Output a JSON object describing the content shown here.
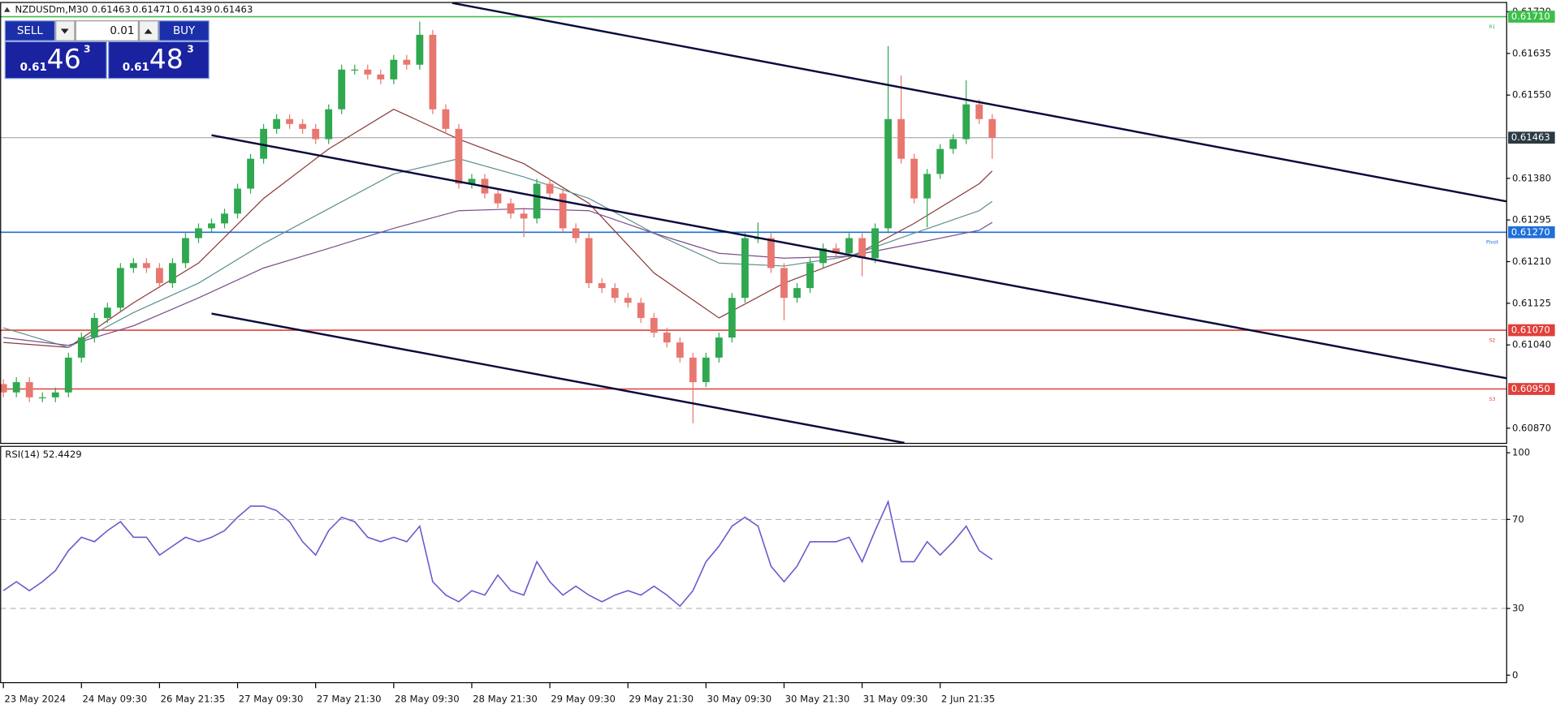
{
  "header": {
    "symbol": "NZDUSDm,M30",
    "ohlc": [
      "0.61463",
      "0.61471",
      "0.61439",
      "0.61463"
    ]
  },
  "trade_panel": {
    "sell_label": "SELL",
    "buy_label": "BUY",
    "lot": "0.01",
    "sell_price": {
      "prefix": "0.61",
      "big": "46",
      "sup": "3"
    },
    "buy_price": {
      "prefix": "0.61",
      "big": "48",
      "sup": "3"
    }
  },
  "chart_data": [
    {
      "type": "candlestick",
      "up_color": "#2fa84f",
      "down_color": "#e8776f",
      "x": [
        0,
        4,
        8,
        12,
        16,
        20,
        24,
        28,
        32,
        36,
        40,
        44,
        48,
        52,
        56,
        60,
        64,
        68,
        72,
        76,
        80,
        84,
        88,
        92,
        96,
        100,
        104,
        108,
        112,
        116,
        120,
        124,
        128,
        132,
        136,
        140,
        144,
        148,
        152,
        156,
        160,
        164,
        168,
        172,
        176,
        180,
        184,
        188,
        192,
        196,
        200,
        204,
        208,
        212,
        216,
        220,
        224,
        228,
        232,
        236,
        240,
        244,
        248,
        252,
        256,
        260,
        264,
        268,
        272,
        276,
        280,
        284,
        288,
        292,
        296,
        300,
        304
      ],
      "open": [
        0.6096,
        0.60943,
        0.60964,
        0.60933,
        0.60933,
        0.60943,
        0.61014,
        0.61055,
        0.61095,
        0.61116,
        0.61197,
        0.61207,
        0.61197,
        0.61166,
        0.61207,
        0.61258,
        0.61278,
        0.61288,
        0.61308,
        0.61359,
        0.6142,
        0.61481,
        0.61501,
        0.61491,
        0.61481,
        0.6146,
        0.61521,
        0.61602,
        0.61602,
        0.61592,
        0.61582,
        0.61622,
        0.61612,
        0.61673,
        0.61521,
        0.61481,
        0.61369,
        0.61379,
        0.61349,
        0.61329,
        0.61308,
        0.61298,
        0.61369,
        0.61349,
        0.61278,
        0.61258,
        0.61166,
        0.61156,
        0.61136,
        0.61126,
        0.61095,
        0.61065,
        0.61045,
        0.61014,
        0.60964,
        0.61014,
        0.61055,
        0.61136,
        0.61258,
        0.61258,
        0.61197,
        0.61136,
        0.61156,
        0.61207,
        0.61237,
        0.61227,
        0.61258,
        0.61217,
        0.61278,
        0.61501,
        0.6142,
        0.61339,
        0.61389,
        0.6144,
        0.6146,
        0.61531,
        0.61501
      ],
      "high": [
        0.6097,
        0.60974,
        0.60974,
        0.60943,
        0.60953,
        0.61024,
        0.61065,
        0.61105,
        0.61126,
        0.61207,
        0.61217,
        0.61217,
        0.61207,
        0.61217,
        0.61268,
        0.61288,
        0.61298,
        0.61318,
        0.61369,
        0.6143,
        0.61491,
        0.61511,
        0.61511,
        0.61501,
        0.61491,
        0.61531,
        0.61612,
        0.61612,
        0.61612,
        0.61602,
        0.61632,
        0.61632,
        0.617,
        0.61683,
        0.61531,
        0.61491,
        0.61389,
        0.61389,
        0.61359,
        0.61339,
        0.61318,
        0.61379,
        0.61379,
        0.61359,
        0.61288,
        0.61268,
        0.61176,
        0.61166,
        0.61146,
        0.61136,
        0.61105,
        0.61075,
        0.61055,
        0.61024,
        0.61024,
        0.61065,
        0.61146,
        0.61268,
        0.6129,
        0.61268,
        0.61207,
        0.61166,
        0.61217,
        0.61247,
        0.61247,
        0.61268,
        0.61268,
        0.61288,
        0.6165,
        0.6159,
        0.6143,
        0.61399,
        0.6145,
        0.6147,
        0.6158,
        0.61541,
        0.61511
      ],
      "low": [
        0.60933,
        0.60933,
        0.60923,
        0.60923,
        0.60923,
        0.60933,
        0.61004,
        0.61045,
        0.61085,
        0.61106,
        0.61187,
        0.61187,
        0.61156,
        0.61156,
        0.61197,
        0.61248,
        0.61268,
        0.61278,
        0.61298,
        0.61349,
        0.6141,
        0.61471,
        0.61481,
        0.61471,
        0.6145,
        0.6145,
        0.61511,
        0.61592,
        0.61582,
        0.61572,
        0.61572,
        0.61602,
        0.61602,
        0.61511,
        0.61471,
        0.61359,
        0.61359,
        0.61339,
        0.61319,
        0.61298,
        0.6126,
        0.61288,
        0.61339,
        0.61268,
        0.61248,
        0.61156,
        0.61146,
        0.61126,
        0.61116,
        0.61085,
        0.61055,
        0.61035,
        0.61004,
        0.6088,
        0.60954,
        0.61004,
        0.61045,
        0.61126,
        0.61248,
        0.61187,
        0.6109,
        0.61126,
        0.61146,
        0.61197,
        0.61217,
        0.61217,
        0.6118,
        0.61207,
        0.61268,
        0.6141,
        0.61329,
        0.6128,
        0.61379,
        0.6143,
        0.6145,
        0.61491,
        0.6142
      ],
      "close": [
        0.60943,
        0.60964,
        0.60933,
        0.60933,
        0.60943,
        0.61014,
        0.61055,
        0.61095,
        0.61116,
        0.61197,
        0.61207,
        0.61197,
        0.61166,
        0.61207,
        0.61258,
        0.61278,
        0.61288,
        0.61308,
        0.61359,
        0.6142,
        0.61481,
        0.61501,
        0.61491,
        0.61481,
        0.6146,
        0.61521,
        0.61602,
        0.61602,
        0.61592,
        0.61582,
        0.61622,
        0.61612,
        0.61673,
        0.61521,
        0.61481,
        0.61369,
        0.61379,
        0.61349,
        0.61329,
        0.61308,
        0.61298,
        0.61369,
        0.61349,
        0.61278,
        0.61258,
        0.61166,
        0.61156,
        0.61136,
        0.61126,
        0.61095,
        0.61065,
        0.61045,
        0.61014,
        0.60964,
        0.61014,
        0.61055,
        0.61136,
        0.61258,
        0.61258,
        0.61197,
        0.61136,
        0.61156,
        0.61207,
        0.61237,
        0.61227,
        0.61258,
        0.61217,
        0.61278,
        0.61501,
        0.6142,
        0.61339,
        0.61389,
        0.6144,
        0.6146,
        0.61531,
        0.61501,
        0.61463
      ],
      "overlays": [
        {
          "color": "#8b3a3a",
          "x": [
            0,
            20,
            40,
            60,
            80,
            100,
            120,
            140,
            160,
            180,
            200,
            220,
            240,
            260,
            280,
            300,
            304
          ],
          "values": [
            0.61045,
            0.61035,
            0.61126,
            0.61207,
            0.61339,
            0.6144,
            0.61521,
            0.6146,
            0.6141,
            0.61329,
            0.61187,
            0.61095,
            0.61166,
            0.61217,
            0.61288,
            0.61369,
            0.61395
          ]
        },
        {
          "color": "#5f8f8f",
          "x": [
            0,
            20,
            40,
            60,
            80,
            100,
            120,
            140,
            160,
            180,
            200,
            220,
            240,
            260,
            280,
            300,
            304
          ],
          "values": [
            0.61075,
            0.61035,
            0.61106,
            0.61166,
            0.61247,
            0.61318,
            0.61389,
            0.6142,
            0.61383,
            0.61339,
            0.61268,
            0.61207,
            0.61201,
            0.61221,
            0.61268,
            0.61314,
            0.61333
          ]
        },
        {
          "color": "#7b4f8a",
          "x": [
            0,
            20,
            40,
            60,
            80,
            100,
            120,
            140,
            160,
            180,
            200,
            220,
            240,
            260,
            280,
            300,
            304
          ],
          "values": [
            0.61055,
            0.61039,
            0.61079,
            0.61136,
            0.61197,
            0.61237,
            0.61278,
            0.61314,
            0.61318,
            0.61314,
            0.61268,
            0.61227,
            0.61217,
            0.61221,
            0.61247,
            0.61274,
            0.6129
          ]
        }
      ],
      "trendlines": [
        {
          "color": "#0a0a3c",
          "x": [
            138,
            462
          ],
          "y": [
            0.61738,
            0.61333
          ]
        },
        {
          "color": "#0a0a3c",
          "x": [
            64,
            462
          ],
          "y": [
            0.61468,
            0.60972
          ]
        },
        {
          "color": "#0a0a3c",
          "x": [
            64,
            277
          ],
          "y": [
            0.61104,
            0.6084
          ]
        }
      ],
      "levels": [
        {
          "name": "R1",
          "value": 0.6171,
          "label": "0.61710",
          "color": "#3cbf4a"
        },
        {
          "name": "Pivot",
          "value": 0.6127,
          "label": "0.61270",
          "color": "#1e6fd9"
        },
        {
          "name": "S2",
          "value": 0.6107,
          "label": "0.61070",
          "color": "#e0403a"
        },
        {
          "name": "S3",
          "value": 0.6095,
          "label": "0.60950",
          "color": "#e0403a"
        }
      ],
      "current_price": {
        "value": 0.61463,
        "label": "0.61463",
        "color": "#2b3a42"
      },
      "xlim": [
        -1,
        462
      ],
      "ylim": [
        0.6084,
        0.6174
      ],
      "yticks": [
        {
          "value": 0.6172,
          "label": "0.61720"
        },
        0.61635,
        {
          "value": 0.6155,
          "label": "0.61550"
        },
        {
          "value": 0.6138,
          "label": "0.61380"
        },
        0.61295,
        {
          "value": 0.6121,
          "label": "0.61210"
        },
        0.61125,
        {
          "value": 0.6104,
          "label": "0.61040"
        },
        {
          "value": 0.6087,
          "label": "0.60870"
        }
      ],
      "xticks": [
        {
          "value": 0,
          "label": "23 May 2024"
        },
        {
          "value": 24,
          "label": "24 May 09:30"
        },
        {
          "value": 48,
          "label": "26 May 21:35"
        },
        {
          "value": 72,
          "label": "27 May 09:30"
        },
        {
          "value": 96,
          "label": "27 May 21:30"
        },
        {
          "value": 120,
          "label": "28 May 09:30"
        },
        {
          "value": 144,
          "label": "28 May 21:30"
        },
        {
          "value": 168,
          "label": "29 May 09:30"
        },
        {
          "value": 192,
          "label": "29 May 21:30"
        },
        {
          "value": 216,
          "label": "30 May 09:30"
        },
        {
          "value": 240,
          "label": "30 May 21:30"
        },
        {
          "value": 264,
          "label": "31 May 09:30"
        },
        {
          "value": 288,
          "label": "2 Jun 21:35"
        }
      ]
    },
    {
      "type": "line",
      "title": "RSI(14) 52.4429",
      "color": "#6a5acd",
      "x": [
        0,
        4,
        8,
        12,
        16,
        20,
        24,
        28,
        32,
        36,
        40,
        44,
        48,
        52,
        56,
        60,
        64,
        68,
        72,
        76,
        80,
        84,
        88,
        92,
        96,
        100,
        104,
        108,
        112,
        116,
        120,
        124,
        128,
        132,
        136,
        140,
        144,
        148,
        152,
        156,
        160,
        164,
        168,
        172,
        176,
        180,
        184,
        188,
        192,
        196,
        200,
        204,
        208,
        212,
        216,
        220,
        224,
        228,
        232,
        236,
        240,
        244,
        248,
        252,
        256,
        260,
        264,
        268,
        272,
        276,
        280,
        284,
        288,
        292,
        296,
        300,
        304
      ],
      "values": [
        38,
        42,
        38,
        42,
        47,
        56,
        62,
        60,
        65,
        69,
        62,
        62,
        54,
        58,
        62,
        60,
        62,
        65,
        71,
        76,
        76,
        74,
        69,
        60,
        54,
        65,
        71,
        69,
        62,
        60,
        62,
        60,
        67,
        42,
        36,
        33,
        38,
        36,
        45,
        38,
        36,
        51,
        42,
        36,
        40,
        36,
        33,
        36,
        38,
        36,
        40,
        36,
        31,
        38,
        51,
        58,
        67,
        71,
        67,
        49,
        42,
        49,
        60,
        60,
        60,
        62,
        51,
        65,
        78,
        51,
        51,
        60,
        54,
        60,
        67,
        56,
        52
      ],
      "xlim": [
        -1,
        462
      ],
      "ylim": [
        -3.6,
        103.1
      ],
      "yticks": [
        0,
        30,
        70,
        100
      ],
      "dashed_levels": [
        30,
        70
      ]
    }
  ]
}
